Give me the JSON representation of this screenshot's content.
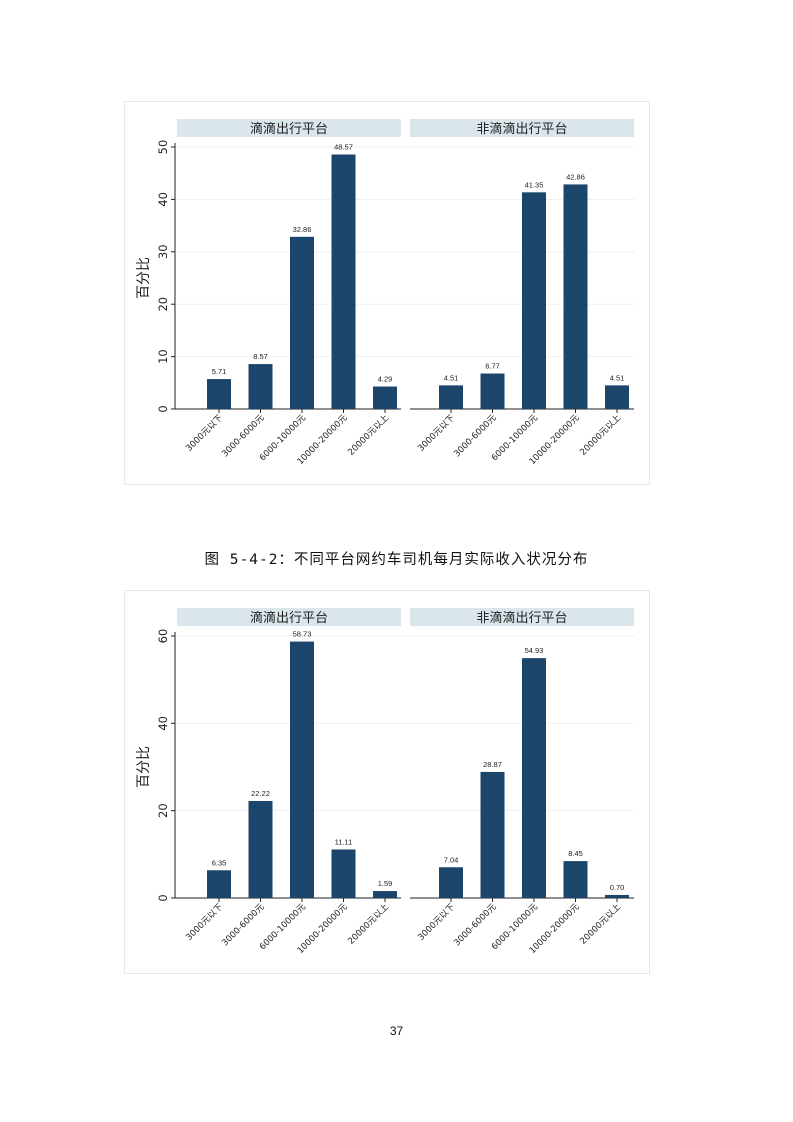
{
  "page": {
    "caption": "图 5-4-2：不同平台网约车司机每月实际收入状况分布",
    "page_number": "37"
  },
  "colors": {
    "bar": "#1b456b",
    "strip": "#dbe6ec",
    "grid": "#eef1f4",
    "axis": "#222222"
  },
  "chart_data": [
    {
      "type": "bar",
      "ylabel": "百分比",
      "ylim": [
        0,
        50
      ],
      "yticks": [
        0,
        10,
        20,
        30,
        40,
        50
      ],
      "categories": [
        "3000元以下",
        "3000-6000元",
        "6000-10000元",
        "10000-20000元",
        "20000元以上"
      ],
      "panels": [
        {
          "title": "滴滴出行平台",
          "values": [
            5.71,
            8.57,
            32.86,
            48.57,
            4.29
          ],
          "labels": [
            "5.71",
            "8.57",
            "32.86",
            "48.57",
            "4.29"
          ]
        },
        {
          "title": "非滴滴出行平台",
          "values": [
            4.51,
            6.77,
            41.35,
            42.86,
            4.51
          ],
          "labels": [
            "4.51",
            "6.77",
            "41.35",
            "42.86",
            "4.51"
          ]
        }
      ]
    },
    {
      "type": "bar",
      "ylabel": "百分比",
      "ylim": [
        0,
        60
      ],
      "yticks": [
        0,
        20,
        40,
        60
      ],
      "categories": [
        "3000元以下",
        "3000-6000元",
        "6000-10000元",
        "10000-20000元",
        "20000元以上"
      ],
      "panels": [
        {
          "title": "滴滴出行平台",
          "values": [
            6.35,
            22.22,
            58.73,
            11.11,
            1.59
          ],
          "labels": [
            "6.35",
            "22.22",
            "58.73",
            "11.11",
            "1.59"
          ]
        },
        {
          "title": "非滴滴出行平台",
          "values": [
            7.04,
            28.87,
            54.93,
            8.45,
            0.7
          ],
          "labels": [
            "7.04",
            "28.87",
            "54.93",
            "8.45",
            "0.70"
          ]
        }
      ]
    }
  ]
}
